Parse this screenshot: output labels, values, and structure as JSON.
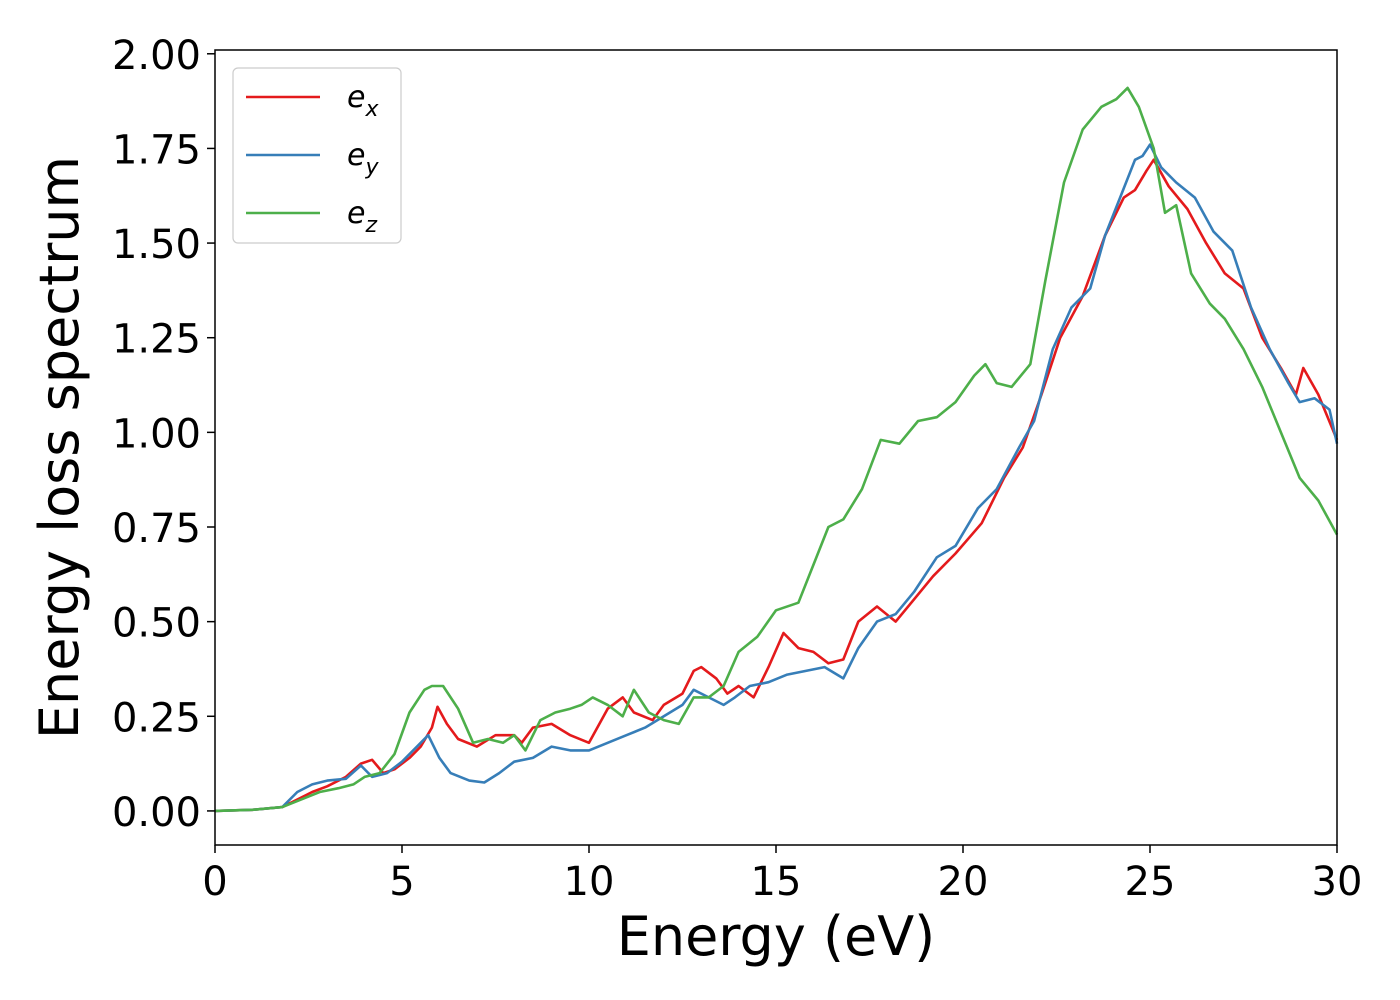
{
  "chart_data": {
    "type": "line",
    "xlabel": "Energy (eV)",
    "ylabel": "Energy loss spectrum",
    "xlim": [
      0,
      30
    ],
    "ylim": [
      -0.09,
      2.01
    ],
    "xticks": [
      0,
      5,
      10,
      15,
      20,
      25,
      30
    ],
    "xtick_labels": [
      "0",
      "5",
      "10",
      "15",
      "20",
      "25",
      "30"
    ],
    "yticks": [
      0,
      0.25,
      0.5,
      0.75,
      1.0,
      1.25,
      1.5,
      1.75,
      2.0
    ],
    "ytick_labels": [
      "0.00",
      "0.25",
      "0.50",
      "0.75",
      "1.00",
      "1.25",
      "1.50",
      "1.75",
      "2.00"
    ],
    "grid": false,
    "legend_position": "top-left",
    "series": [
      {
        "name": "e",
        "subscript": "x",
        "color": "#e41a1c",
        "points": [
          [
            0,
            0
          ],
          [
            1,
            0.003
          ],
          [
            1.8,
            0.01
          ],
          [
            2.2,
            0.03
          ],
          [
            2.6,
            0.05
          ],
          [
            3,
            0.065
          ],
          [
            3.5,
            0.09
          ],
          [
            3.9,
            0.125
          ],
          [
            4.2,
            0.135
          ],
          [
            4.5,
            0.1
          ],
          [
            4.8,
            0.11
          ],
          [
            5.2,
            0.14
          ],
          [
            5.5,
            0.17
          ],
          [
            5.8,
            0.22
          ],
          [
            5.95,
            0.275
          ],
          [
            6.2,
            0.23
          ],
          [
            6.5,
            0.19
          ],
          [
            7,
            0.17
          ],
          [
            7.5,
            0.2
          ],
          [
            8,
            0.2
          ],
          [
            8.2,
            0.18
          ],
          [
            8.5,
            0.22
          ],
          [
            9,
            0.23
          ],
          [
            9.5,
            0.2
          ],
          [
            10,
            0.18
          ],
          [
            10.5,
            0.27
          ],
          [
            10.9,
            0.3
          ],
          [
            11.2,
            0.26
          ],
          [
            11.7,
            0.24
          ],
          [
            12,
            0.28
          ],
          [
            12.5,
            0.31
          ],
          [
            12.8,
            0.37
          ],
          [
            13,
            0.38
          ],
          [
            13.4,
            0.35
          ],
          [
            13.7,
            0.31
          ],
          [
            14,
            0.33
          ],
          [
            14.4,
            0.3
          ],
          [
            14.8,
            0.38
          ],
          [
            15.2,
            0.47
          ],
          [
            15.6,
            0.43
          ],
          [
            16,
            0.42
          ],
          [
            16.4,
            0.39
          ],
          [
            16.8,
            0.4
          ],
          [
            17.2,
            0.5
          ],
          [
            17.7,
            0.54
          ],
          [
            18.2,
            0.5
          ],
          [
            18.7,
            0.56
          ],
          [
            19.2,
            0.62
          ],
          [
            19.8,
            0.68
          ],
          [
            20.5,
            0.76
          ],
          [
            21.1,
            0.88
          ],
          [
            21.6,
            0.96
          ],
          [
            22.1,
            1.1
          ],
          [
            22.6,
            1.25
          ],
          [
            23.2,
            1.36
          ],
          [
            23.8,
            1.52
          ],
          [
            24.3,
            1.62
          ],
          [
            24.6,
            1.64
          ],
          [
            24.9,
            1.69
          ],
          [
            25.1,
            1.72
          ],
          [
            25.5,
            1.65
          ],
          [
            26,
            1.59
          ],
          [
            26.5,
            1.5
          ],
          [
            27,
            1.42
          ],
          [
            27.5,
            1.38
          ],
          [
            28,
            1.25
          ],
          [
            28.5,
            1.17
          ],
          [
            28.9,
            1.1
          ],
          [
            29.1,
            1.17
          ],
          [
            29.5,
            1.1
          ],
          [
            30,
            0.98
          ]
        ]
      },
      {
        "name": "e",
        "subscript": "y",
        "color": "#377eb8",
        "points": [
          [
            0,
            0
          ],
          [
            1,
            0.003
          ],
          [
            1.8,
            0.01
          ],
          [
            2.2,
            0.05
          ],
          [
            2.6,
            0.07
          ],
          [
            3,
            0.08
          ],
          [
            3.5,
            0.085
          ],
          [
            3.9,
            0.12
          ],
          [
            4.2,
            0.09
          ],
          [
            4.6,
            0.1
          ],
          [
            5,
            0.13
          ],
          [
            5.4,
            0.17
          ],
          [
            5.7,
            0.2
          ],
          [
            6,
            0.14
          ],
          [
            6.3,
            0.1
          ],
          [
            6.8,
            0.08
          ],
          [
            7.2,
            0.075
          ],
          [
            7.6,
            0.1
          ],
          [
            8,
            0.13
          ],
          [
            8.5,
            0.14
          ],
          [
            9,
            0.17
          ],
          [
            9.5,
            0.16
          ],
          [
            10,
            0.16
          ],
          [
            10.5,
            0.18
          ],
          [
            11,
            0.2
          ],
          [
            11.5,
            0.22
          ],
          [
            12,
            0.25
          ],
          [
            12.5,
            0.28
          ],
          [
            12.8,
            0.32
          ],
          [
            13.2,
            0.3
          ],
          [
            13.6,
            0.28
          ],
          [
            13.9,
            0.3
          ],
          [
            14.3,
            0.33
          ],
          [
            14.8,
            0.34
          ],
          [
            15.3,
            0.36
          ],
          [
            15.8,
            0.37
          ],
          [
            16.3,
            0.38
          ],
          [
            16.8,
            0.35
          ],
          [
            17.2,
            0.43
          ],
          [
            17.7,
            0.5
          ],
          [
            18.2,
            0.52
          ],
          [
            18.7,
            0.58
          ],
          [
            19.3,
            0.67
          ],
          [
            19.8,
            0.7
          ],
          [
            20.4,
            0.8
          ],
          [
            20.9,
            0.85
          ],
          [
            21.5,
            0.96
          ],
          [
            21.9,
            1.03
          ],
          [
            22.4,
            1.22
          ],
          [
            22.9,
            1.33
          ],
          [
            23.4,
            1.38
          ],
          [
            23.8,
            1.52
          ],
          [
            24.2,
            1.62
          ],
          [
            24.6,
            1.72
          ],
          [
            24.8,
            1.73
          ],
          [
            25,
            1.76
          ],
          [
            25.3,
            1.7
          ],
          [
            25.7,
            1.66
          ],
          [
            26.2,
            1.62
          ],
          [
            26.7,
            1.53
          ],
          [
            27.2,
            1.48
          ],
          [
            27.7,
            1.33
          ],
          [
            28.2,
            1.22
          ],
          [
            28.7,
            1.13
          ],
          [
            29,
            1.08
          ],
          [
            29.4,
            1.09
          ],
          [
            29.8,
            1.06
          ],
          [
            30,
            0.97
          ]
        ]
      },
      {
        "name": "e",
        "subscript": "z",
        "color": "#4daf4a",
        "points": [
          [
            0,
            0
          ],
          [
            1,
            0.003
          ],
          [
            1.8,
            0.01
          ],
          [
            2.3,
            0.03
          ],
          [
            2.8,
            0.05
          ],
          [
            3.3,
            0.06
          ],
          [
            3.7,
            0.07
          ],
          [
            4,
            0.09
          ],
          [
            4.4,
            0.1
          ],
          [
            4.8,
            0.15
          ],
          [
            5.2,
            0.26
          ],
          [
            5.6,
            0.32
          ],
          [
            5.8,
            0.33
          ],
          [
            6.1,
            0.33
          ],
          [
            6.5,
            0.27
          ],
          [
            6.9,
            0.18
          ],
          [
            7.3,
            0.19
          ],
          [
            7.7,
            0.18
          ],
          [
            8,
            0.2
          ],
          [
            8.3,
            0.16
          ],
          [
            8.7,
            0.24
          ],
          [
            9.1,
            0.26
          ],
          [
            9.5,
            0.27
          ],
          [
            9.8,
            0.28
          ],
          [
            10.1,
            0.3
          ],
          [
            10.5,
            0.28
          ],
          [
            10.9,
            0.25
          ],
          [
            11.2,
            0.32
          ],
          [
            11.6,
            0.26
          ],
          [
            12,
            0.24
          ],
          [
            12.4,
            0.23
          ],
          [
            12.8,
            0.3
          ],
          [
            13.2,
            0.3
          ],
          [
            13.6,
            0.33
          ],
          [
            14,
            0.42
          ],
          [
            14.5,
            0.46
          ],
          [
            15,
            0.53
          ],
          [
            15.6,
            0.55
          ],
          [
            16,
            0.65
          ],
          [
            16.4,
            0.75
          ],
          [
            16.8,
            0.77
          ],
          [
            17.3,
            0.85
          ],
          [
            17.8,
            0.98
          ],
          [
            18.3,
            0.97
          ],
          [
            18.8,
            1.03
          ],
          [
            19.3,
            1.04
          ],
          [
            19.8,
            1.08
          ],
          [
            20.3,
            1.15
          ],
          [
            20.6,
            1.18
          ],
          [
            20.9,
            1.13
          ],
          [
            21.3,
            1.12
          ],
          [
            21.8,
            1.18
          ],
          [
            22.2,
            1.4
          ],
          [
            22.7,
            1.66
          ],
          [
            23.2,
            1.8
          ],
          [
            23.7,
            1.86
          ],
          [
            24.1,
            1.88
          ],
          [
            24.4,
            1.91
          ],
          [
            24.7,
            1.86
          ],
          [
            25.1,
            1.75
          ],
          [
            25.4,
            1.58
          ],
          [
            25.7,
            1.6
          ],
          [
            26.1,
            1.42
          ],
          [
            26.6,
            1.34
          ],
          [
            27,
            1.3
          ],
          [
            27.5,
            1.22
          ],
          [
            28,
            1.12
          ],
          [
            28.5,
            1.0
          ],
          [
            29,
            0.88
          ],
          [
            29.5,
            0.82
          ],
          [
            30,
            0.73
          ]
        ]
      }
    ]
  }
}
